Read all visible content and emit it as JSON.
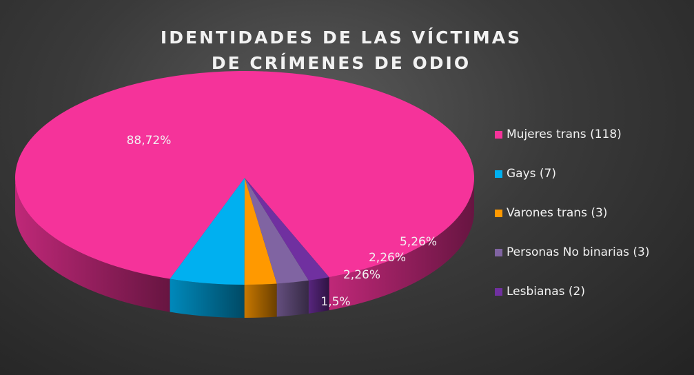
{
  "chart_data": {
    "type": "pie",
    "title_lines": [
      "IDENTIDADES DE LAS VÍCTIMAS",
      "DE CRÍMENES DE ODIO"
    ],
    "slices": [
      {
        "label": "Mujeres trans (118)",
        "value": 118,
        "percent_label": "88,72%",
        "color": "#f5339a"
      },
      {
        "label": "Gays (7)",
        "value": 7,
        "percent_label": "5,26%",
        "color": "#00b0f0"
      },
      {
        "label": "Varones trans (3)",
        "value": 3,
        "percent_label": "2,26%",
        "color": "#ff9900"
      },
      {
        "label": "Personas No binarias (3)",
        "value": 3,
        "percent_label": "2,26%",
        "color": "#8064a2"
      },
      {
        "label": "Lesbianas (2)",
        "value": 2,
        "percent_label": "1,5%",
        "color": "#7030a0"
      }
    ],
    "legend_position": "right",
    "style": "3d"
  }
}
